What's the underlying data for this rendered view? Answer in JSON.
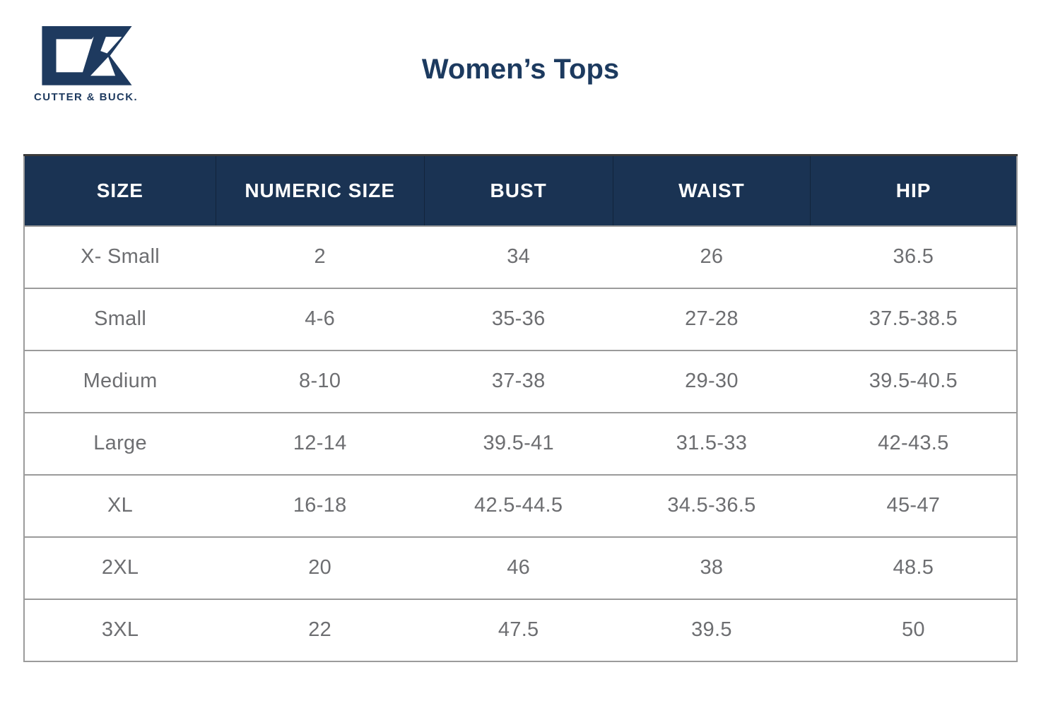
{
  "brand": {
    "wordmark": "CUTTER & BUCK.",
    "logo_color": "#1E3A5F"
  },
  "page_title": "Women’s Tops",
  "colors": {
    "navy_title": "#1C3A5F",
    "header_bg": "#1A3353",
    "header_text": "#FFFFFF",
    "cell_text": "#6D6E71",
    "row_border": "#9B9B9B",
    "table_top_border": "#3B3B3B"
  },
  "chart_data": {
    "type": "table",
    "title": "Women’s Tops",
    "columns": [
      "SIZE",
      "NUMERIC SIZE",
      "BUST",
      "WAIST",
      "HIP"
    ],
    "column_widths_pct": [
      19.3,
      21.0,
      19.0,
      19.9,
      20.8
    ],
    "rows": [
      [
        "X- Small",
        "2",
        "34",
        "26",
        "36.5"
      ],
      [
        "Small",
        "4-6",
        "35-36",
        "27-28",
        "37.5-38.5"
      ],
      [
        "Medium",
        "8-10",
        "37-38",
        "29-30",
        "39.5-40.5"
      ],
      [
        "Large",
        "12-14",
        "39.5-41",
        "31.5-33",
        "42-43.5"
      ],
      [
        "XL",
        "16-18",
        "42.5-44.5",
        "34.5-36.5",
        "45-47"
      ],
      [
        "2XL",
        "20",
        "46",
        "38",
        "48.5"
      ],
      [
        "3XL",
        "22",
        "47.5",
        "39.5",
        "50"
      ]
    ]
  }
}
